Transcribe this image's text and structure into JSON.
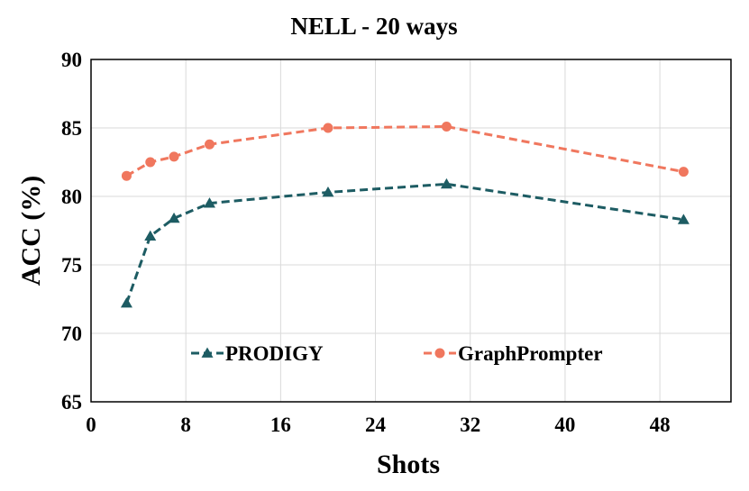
{
  "chart_data": {
    "type": "line",
    "title": "NELL - 20 ways",
    "xlabel": "Shots",
    "ylabel": "ACC (%)",
    "xlim": [
      0,
      54
    ],
    "ylim": [
      65,
      90
    ],
    "xticks": [
      0,
      8,
      16,
      24,
      32,
      40,
      48
    ],
    "yticks": [
      65,
      70,
      75,
      80,
      85,
      90
    ],
    "x_tick_labels": [
      "0",
      "8",
      "16",
      "24",
      "32",
      "40",
      "48"
    ],
    "y_tick_labels": [
      "65",
      "70",
      "75",
      "80",
      "85",
      "90"
    ],
    "grid": true,
    "legend_position": "lower-center",
    "series": [
      {
        "name": "PRODIGY",
        "color": "#1d5c63",
        "marker": "triangle",
        "x": [
          3,
          5,
          7,
          10,
          20,
          30,
          50
        ],
        "values": [
          72.2,
          77.1,
          78.4,
          79.5,
          80.3,
          80.9,
          78.3
        ]
      },
      {
        "name": "GraphPrompter",
        "color": "#f0775e",
        "marker": "circle",
        "x": [
          3,
          5,
          7,
          10,
          20,
          30,
          50
        ],
        "values": [
          81.5,
          82.5,
          82.9,
          83.8,
          85.0,
          85.1,
          81.8
        ]
      }
    ]
  }
}
